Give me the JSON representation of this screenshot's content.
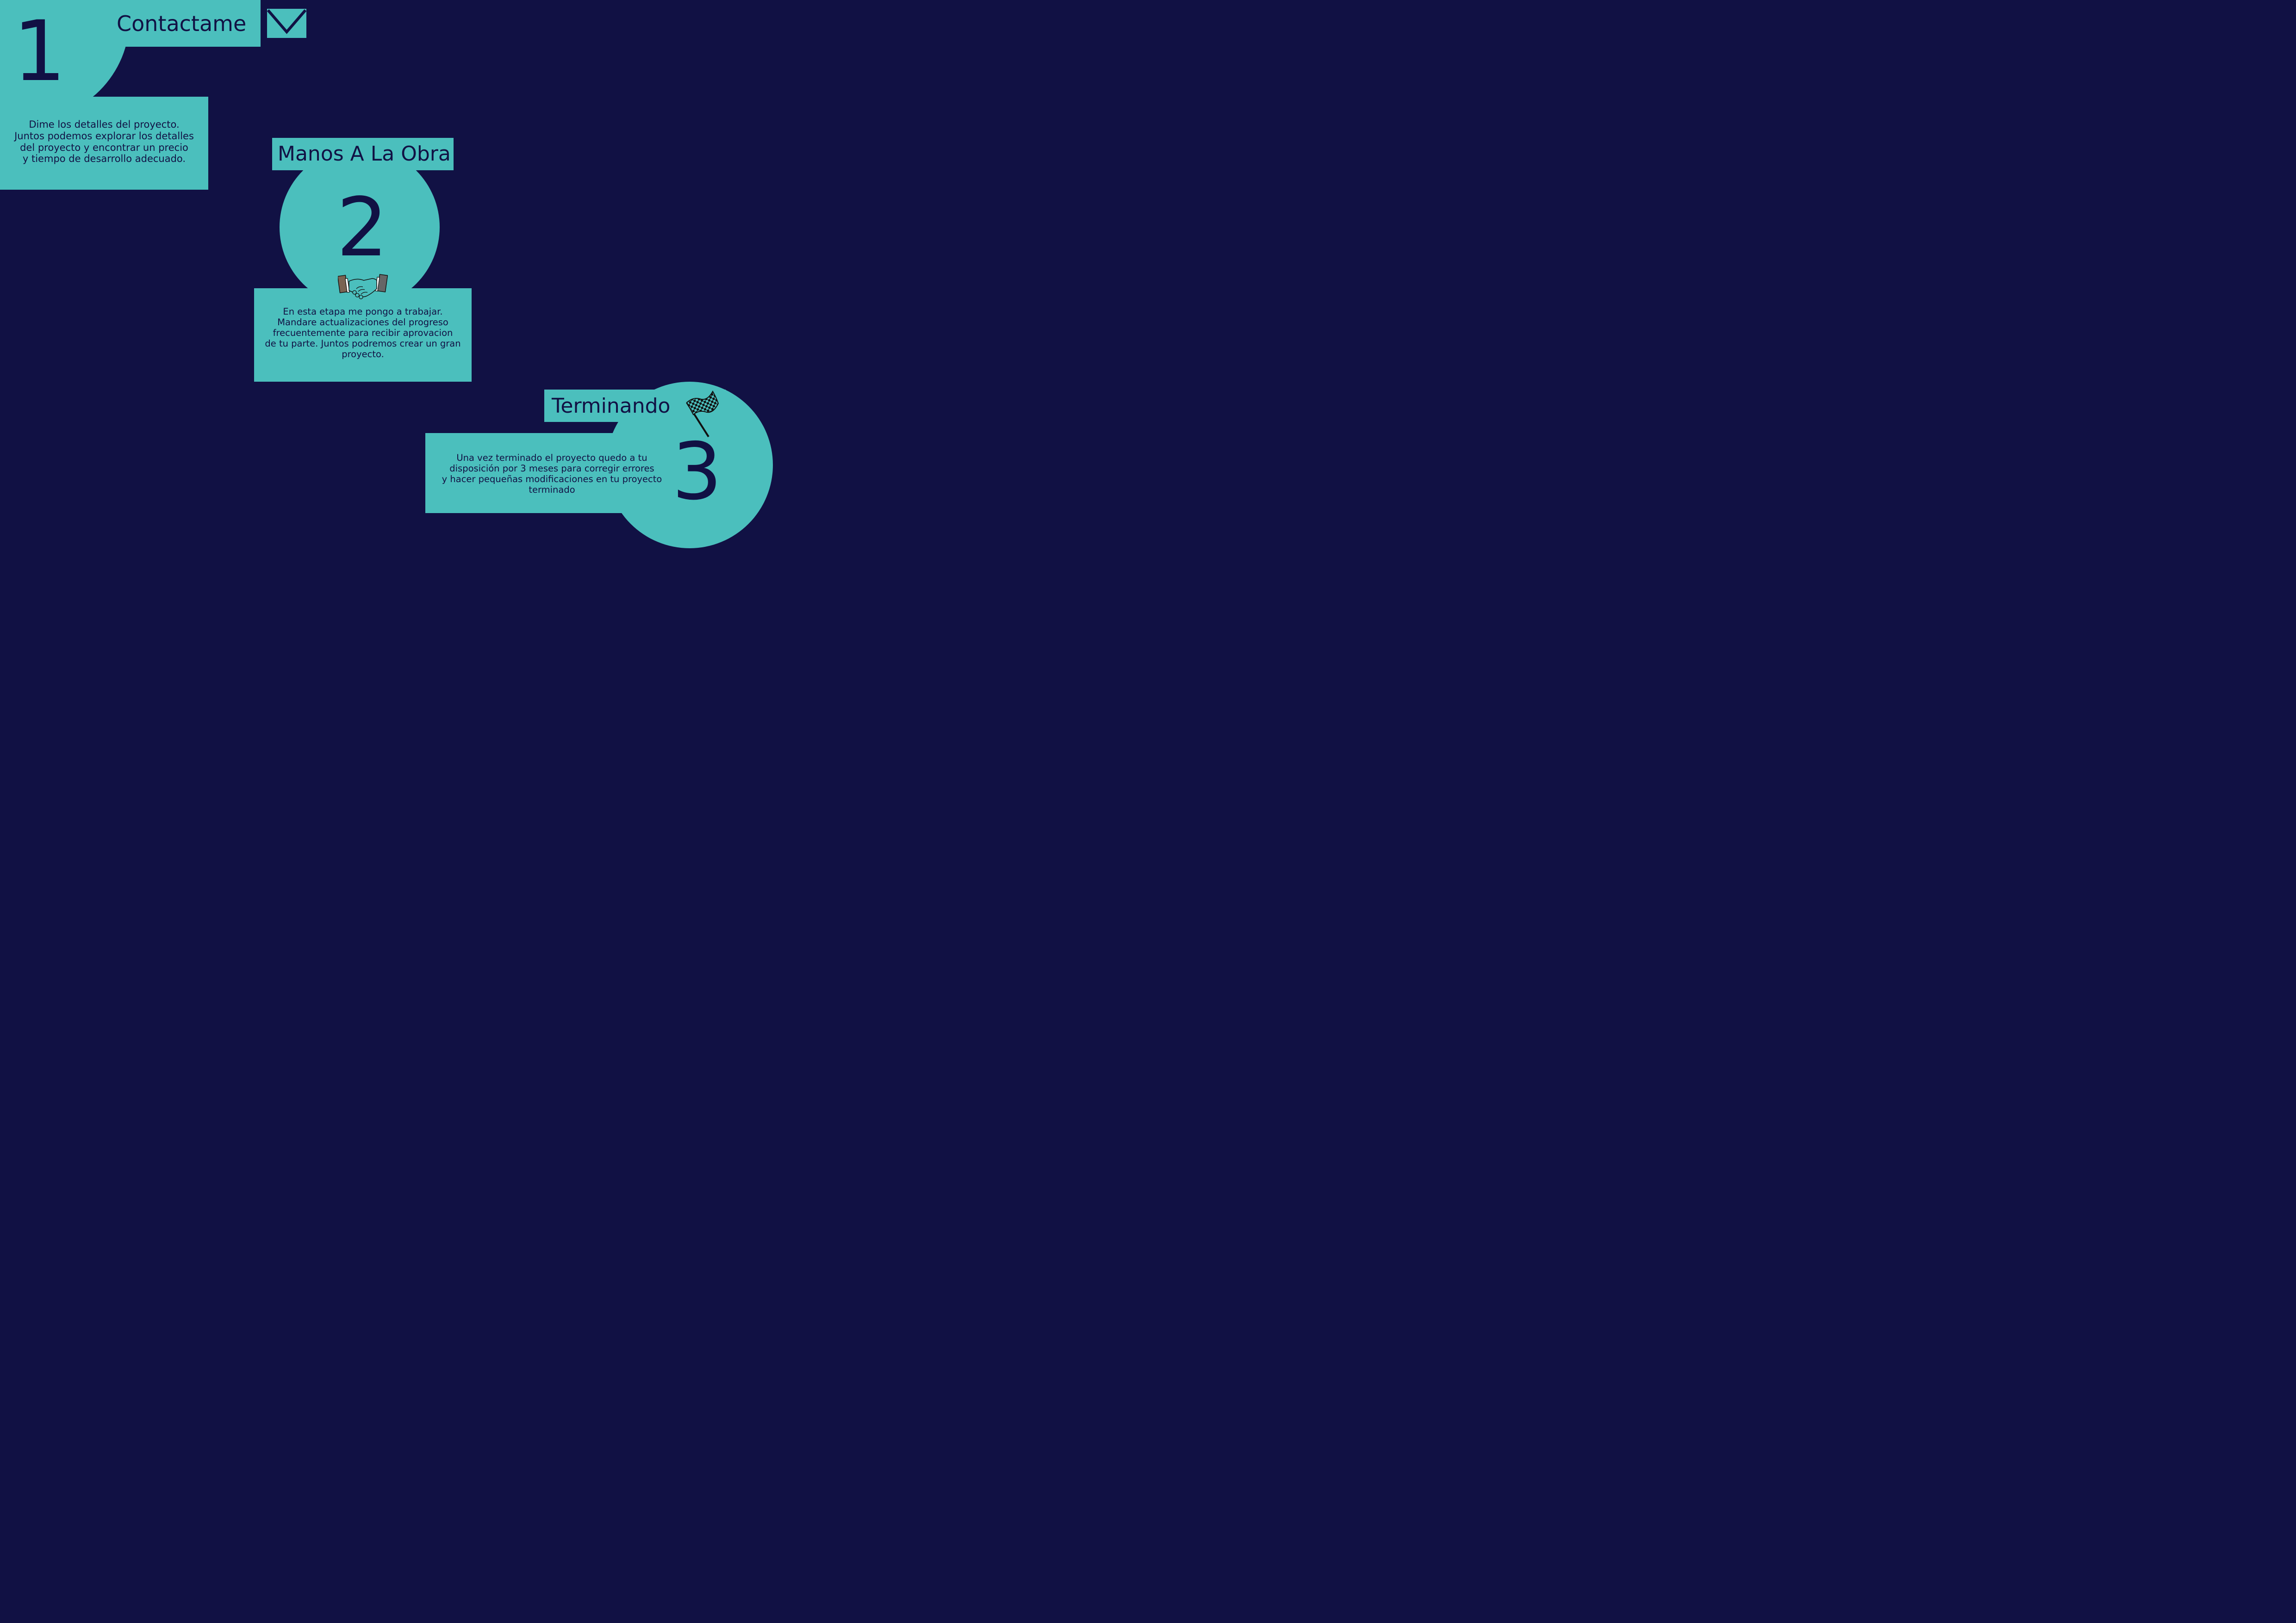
{
  "colors": {
    "background": "#111144",
    "accent": "#4bbfbd",
    "text": "#111144"
  },
  "steps": [
    {
      "number": "1",
      "title": "Contactame",
      "icon": "envelope-icon",
      "description": [
        "Dime los detalles del proyecto.",
        "Juntos podemos explorar los detalles",
        "del proyecto y encontrar un precio",
        "y tiempo de desarrollo adecuado."
      ]
    },
    {
      "number": "2",
      "title": "Manos A La Obra",
      "icon": "handshake-icon",
      "description": [
        "En esta etapa me pongo a trabajar.",
        "Mandare actualizaciones del progreso",
        "frecuentemente para recibir aprovacion",
        "de tu parte. Juntos podremos crear un gran",
        "proyecto."
      ]
    },
    {
      "number": "3",
      "title": "Terminando",
      "icon": "checkered-flag-icon",
      "description": [
        "Una vez terminado el proyecto quedo a tu",
        "disposición por 3 meses para corregir errores",
        "y hacer pequeñas modificaciones en tu proyecto",
        "terminado"
      ]
    }
  ]
}
